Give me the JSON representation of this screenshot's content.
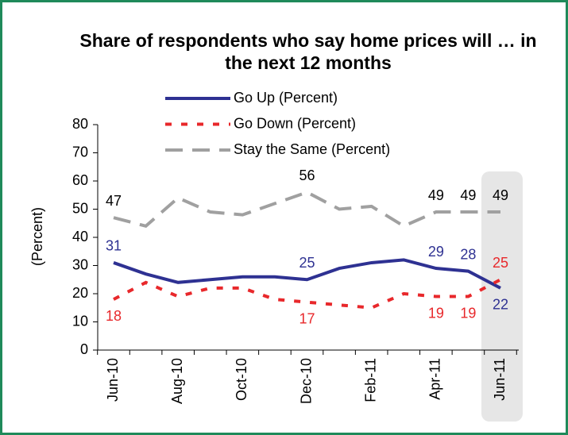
{
  "chart_data": {
    "type": "line",
    "title": "Share of respondents who say home prices will … in the next 12 months",
    "y_label": "(Percent)",
    "categories": [
      "Jun-10",
      null,
      "Aug-10",
      null,
      "Oct-10",
      null,
      "Dec-10",
      null,
      "Feb-11",
      null,
      "Apr-11",
      null,
      "Jun-11"
    ],
    "ylim": [
      0,
      80
    ],
    "yticks": [
      0,
      10,
      20,
      30,
      40,
      50,
      60,
      70,
      80
    ],
    "series": [
      {
        "name": "Go Up (Percent)",
        "color": "#2e3192",
        "dash": "solid",
        "values": [
          31,
          27,
          24,
          25,
          26,
          26,
          25,
          29,
          31,
          32,
          29,
          28,
          22
        ],
        "value_labels": [
          "31",
          null,
          null,
          null,
          null,
          null,
          "25",
          null,
          null,
          null,
          "29",
          "28",
          "22"
        ]
      },
      {
        "name": "Go Down (Percent)",
        "color": "#e8282b",
        "dash": "short",
        "values": [
          18,
          24,
          19,
          22,
          22,
          18,
          17,
          16,
          15,
          20,
          19,
          19,
          25
        ],
        "value_labels": [
          "18",
          null,
          null,
          null,
          null,
          null,
          "17",
          null,
          null,
          null,
          "19",
          "19",
          "25"
        ]
      },
      {
        "name": "Stay the Same (Percent)",
        "color": "#a0a0a0",
        "dash": "long",
        "values": [
          47,
          44,
          54,
          49,
          48,
          52,
          56,
          50,
          51,
          44,
          49,
          49,
          49
        ],
        "value_labels": [
          "47",
          null,
          null,
          null,
          null,
          null,
          "56",
          null,
          null,
          null,
          "49",
          "49",
          "49"
        ]
      }
    ]
  }
}
